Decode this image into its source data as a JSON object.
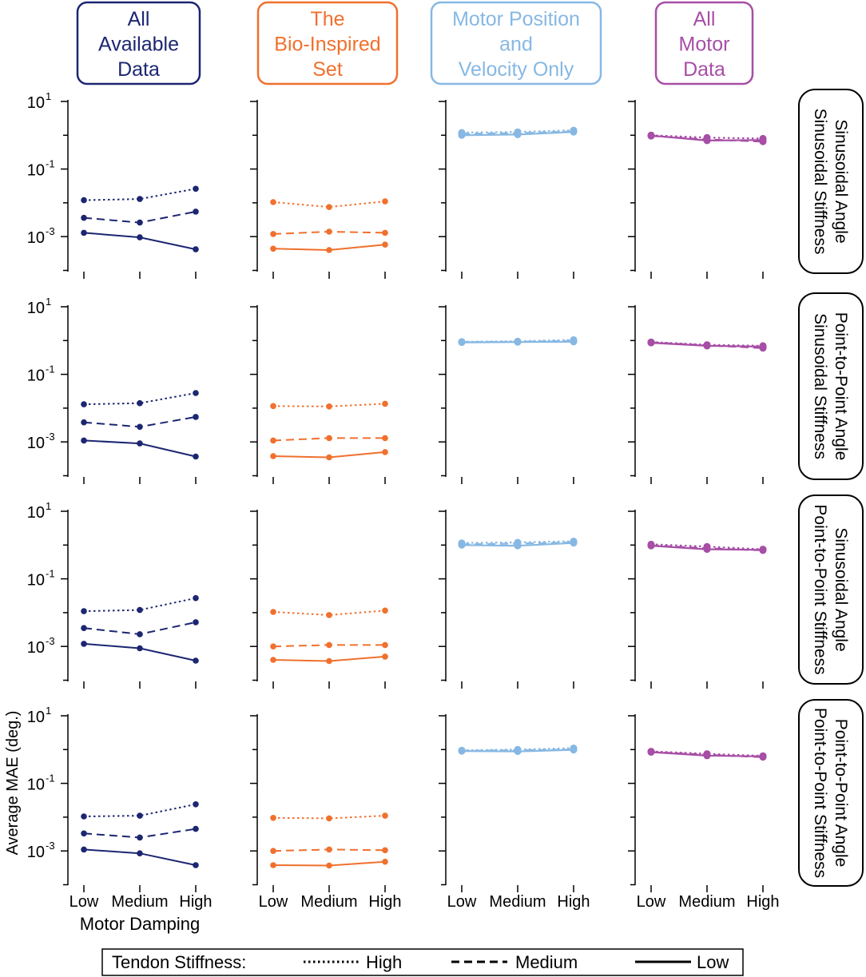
{
  "colors": {
    "all_available": "#1c2671",
    "bio_inspired": "#f0702d",
    "motor_pos_vel": "#87b8e3",
    "all_motor": "#a74ea6",
    "axis": "#000000"
  },
  "columns": [
    {
      "key": "all_available",
      "lines": [
        "All",
        "Available",
        "Data"
      ]
    },
    {
      "key": "bio_inspired",
      "lines": [
        "The",
        "Bio-Inspired",
        "Set"
      ]
    },
    {
      "key": "motor_pos_vel",
      "lines": [
        "Motor Position",
        "and",
        "Velocity Only"
      ]
    },
    {
      "key": "all_motor",
      "lines": [
        "All",
        "Motor",
        "Data"
      ]
    }
  ],
  "rows": [
    {
      "lines": [
        "Sinusoidal Angle",
        "Sinusoidal Stiffness"
      ]
    },
    {
      "lines": [
        "Point-to-Point Angle",
        "Sinusoidal Stiffness"
      ]
    },
    {
      "lines": [
        "Sinusoidal Angle",
        "Point-to-Point Stiffness"
      ]
    },
    {
      "lines": [
        "Point-to-Point Angle",
        "Point-to-Point Stiffness"
      ]
    }
  ],
  "legend": {
    "title": "Tendon Stiffness:",
    "items": [
      {
        "label": "High",
        "style": "dotted"
      },
      {
        "label": "Medium",
        "style": "dashed"
      },
      {
        "label": "Low",
        "style": "solid"
      }
    ]
  },
  "chart_data": {
    "type": "line",
    "yscale": "log",
    "ylim": [
      0.0001,
      10
    ],
    "y_ticks": [
      {
        "exp": "1",
        "label": "10"
      },
      {
        "exp": "-1",
        "label": "10"
      },
      {
        "exp": "-3",
        "label": "10"
      }
    ],
    "ylabel": "Average MAE (deg.)",
    "xlabel": "Motor Damping",
    "categories": [
      "Low",
      "Medium",
      "High"
    ],
    "panels": [
      {
        "row": 0,
        "col": 0,
        "series": [
          {
            "name": "High",
            "values": [
              0.012,
              0.013,
              0.026
            ]
          },
          {
            "name": "Medium",
            "values": [
              0.0036,
              0.0026,
              0.0055
            ]
          },
          {
            "name": "Low",
            "values": [
              0.0013,
              0.00095,
              0.00042
            ]
          }
        ]
      },
      {
        "row": 0,
        "col": 1,
        "series": [
          {
            "name": "High",
            "values": [
              0.0105,
              0.0075,
              0.011
            ]
          },
          {
            "name": "Medium",
            "values": [
              0.0012,
              0.0014,
              0.0013
            ]
          },
          {
            "name": "Low",
            "values": [
              0.00044,
              0.0004,
              0.00058
            ]
          }
        ]
      },
      {
        "row": 0,
        "col": 2,
        "series": [
          {
            "name": "High",
            "values": [
              1.2,
              1.25,
              1.4
            ]
          },
          {
            "name": "Medium",
            "values": [
              1.1,
              1.15,
              1.3
            ]
          },
          {
            "name": "Low",
            "values": [
              1.0,
              1.05,
              1.25
            ]
          }
        ]
      },
      {
        "row": 0,
        "col": 3,
        "series": [
          {
            "name": "High",
            "values": [
              1.0,
              0.85,
              0.8
            ]
          },
          {
            "name": "Medium",
            "values": [
              0.95,
              0.75,
              0.65
            ]
          },
          {
            "name": "Low",
            "values": [
              0.98,
              0.7,
              0.72
            ]
          }
        ]
      },
      {
        "row": 1,
        "col": 0,
        "series": [
          {
            "name": "High",
            "values": [
              0.013,
              0.014,
              0.028
            ]
          },
          {
            "name": "Medium",
            "values": [
              0.0038,
              0.0028,
              0.0055
            ]
          },
          {
            "name": "Low",
            "values": [
              0.0011,
              0.0009,
              0.00037
            ]
          }
        ]
      },
      {
        "row": 1,
        "col": 1,
        "series": [
          {
            "name": "High",
            "values": [
              0.0115,
              0.0112,
              0.0135
            ]
          },
          {
            "name": "Medium",
            "values": [
              0.0011,
              0.0013,
              0.0013
            ]
          },
          {
            "name": "Low",
            "values": [
              0.00038,
              0.00035,
              0.0005
            ]
          }
        ]
      },
      {
        "row": 1,
        "col": 2,
        "series": [
          {
            "name": "High",
            "values": [
              0.92,
              0.95,
              1.05
            ]
          },
          {
            "name": "Medium",
            "values": [
              0.9,
              0.92,
              0.98
            ]
          },
          {
            "name": "Low",
            "values": [
              0.88,
              0.9,
              0.92
            ]
          }
        ]
      },
      {
        "row": 1,
        "col": 3,
        "series": [
          {
            "name": "High",
            "values": [
              0.9,
              0.75,
              0.7
            ]
          },
          {
            "name": "Medium",
            "values": [
              0.88,
              0.72,
              0.6
            ]
          },
          {
            "name": "Low",
            "values": [
              0.86,
              0.7,
              0.66
            ]
          }
        ]
      },
      {
        "row": 2,
        "col": 0,
        "series": [
          {
            "name": "High",
            "values": [
              0.011,
              0.012,
              0.027
            ]
          },
          {
            "name": "Medium",
            "values": [
              0.0035,
              0.0023,
              0.0052
            ]
          },
          {
            "name": "Low",
            "values": [
              0.0012,
              0.00088,
              0.00038
            ]
          }
        ]
      },
      {
        "row": 2,
        "col": 1,
        "series": [
          {
            "name": "High",
            "values": [
              0.0105,
              0.0085,
              0.0115
            ]
          },
          {
            "name": "Medium",
            "values": [
              0.001,
              0.0011,
              0.0011
            ]
          },
          {
            "name": "Low",
            "values": [
              0.0004,
              0.00037,
              0.0005
            ]
          }
        ]
      },
      {
        "row": 2,
        "col": 2,
        "series": [
          {
            "name": "High",
            "values": [
              1.15,
              1.2,
              1.3
            ]
          },
          {
            "name": "Medium",
            "values": [
              1.05,
              1.1,
              1.2
            ]
          },
          {
            "name": "Low",
            "values": [
              1.0,
              0.95,
              1.15
            ]
          }
        ]
      },
      {
        "row": 2,
        "col": 3,
        "series": [
          {
            "name": "High",
            "values": [
              1.05,
              0.9,
              0.75
            ]
          },
          {
            "name": "Medium",
            "values": [
              0.98,
              0.8,
              0.7
            ]
          },
          {
            "name": "Low",
            "values": [
              0.95,
              0.75,
              0.72
            ]
          }
        ]
      },
      {
        "row": 3,
        "col": 0,
        "series": [
          {
            "name": "High",
            "values": [
              0.0105,
              0.011,
              0.024
            ]
          },
          {
            "name": "Medium",
            "values": [
              0.0033,
              0.0025,
              0.0045
            ]
          },
          {
            "name": "Low",
            "values": [
              0.0011,
              0.00085,
              0.00038
            ]
          }
        ]
      },
      {
        "row": 3,
        "col": 1,
        "series": [
          {
            "name": "High",
            "values": [
              0.0095,
              0.0092,
              0.011
            ]
          },
          {
            "name": "Medium",
            "values": [
              0.001,
              0.0011,
              0.00105
            ]
          },
          {
            "name": "Low",
            "values": [
              0.00038,
              0.00037,
              0.00048
            ]
          }
        ]
      },
      {
        "row": 3,
        "col": 2,
        "series": [
          {
            "name": "High",
            "values": [
              0.95,
              1.0,
              1.1
            ]
          },
          {
            "name": "Medium",
            "values": [
              0.92,
              0.95,
              1.0
            ]
          },
          {
            "name": "Low",
            "values": [
              0.9,
              0.88,
              0.98
            ]
          }
        ]
      },
      {
        "row": 3,
        "col": 3,
        "series": [
          {
            "name": "High",
            "values": [
              0.88,
              0.75,
              0.65
            ]
          },
          {
            "name": "Medium",
            "values": [
              0.85,
              0.7,
              0.6
            ]
          },
          {
            "name": "Low",
            "values": [
              0.84,
              0.66,
              0.63
            ]
          }
        ]
      }
    ]
  }
}
